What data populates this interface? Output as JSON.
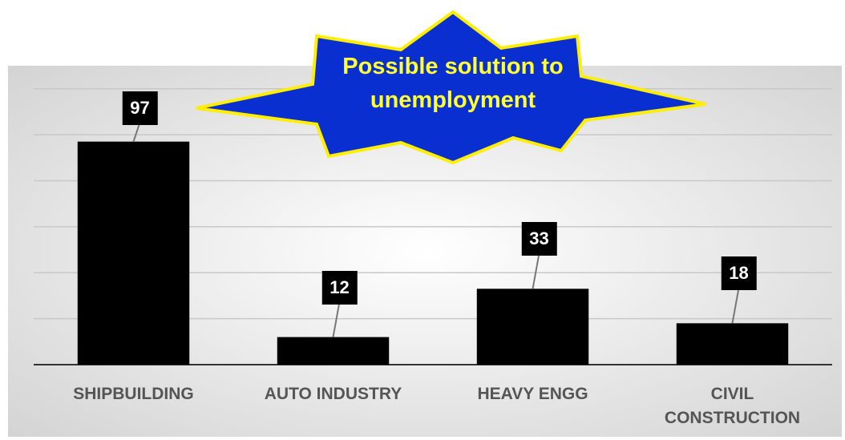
{
  "chart_data": {
    "type": "bar",
    "title": "Possible solution to unemployment",
    "categories": [
      "SHIPBUILDING",
      "AUTO INDUSTRY",
      "HEAVY ENGG",
      "CIVIL CONSTRUCTION"
    ],
    "values": [
      97,
      12,
      33,
      18
    ],
    "color": "#000000",
    "ylim": [
      0,
      130
    ],
    "yticks": [
      0,
      20,
      40,
      60,
      80,
      100,
      120
    ],
    "grid": true
  }
}
